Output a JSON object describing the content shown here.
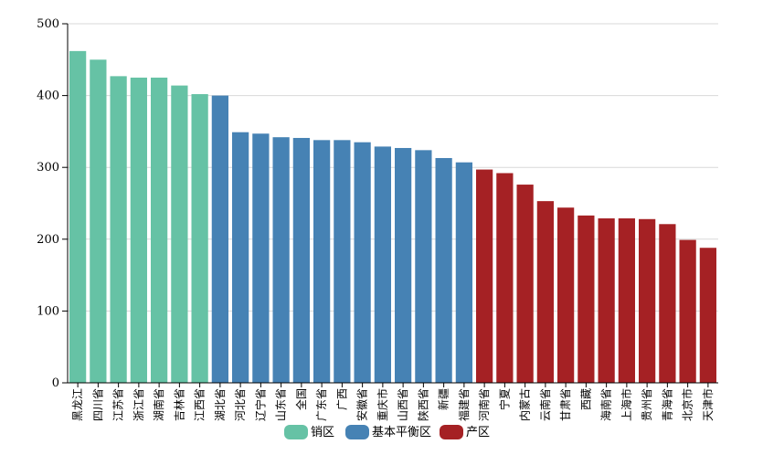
{
  "colors": {
    "series_0": "#66c2a5",
    "series_1": "#4682b4",
    "series_2": "#a52124",
    "grid": "#d9d9d9",
    "axis": "#000000"
  },
  "chart_data": {
    "type": "bar",
    "ylim": [
      0,
      500
    ],
    "y_ticks": [
      0,
      100,
      200,
      300,
      400,
      500
    ],
    "grid": true,
    "legend_position": "bottom",
    "categories": [
      "黑龙江",
      "四川省",
      "江苏省",
      "浙江省",
      "湖南省",
      "吉林省",
      "江西省",
      "湖北省",
      "河北省",
      "辽宁省",
      "山东省",
      "全国",
      "广东省",
      "广西",
      "安徽省",
      "重庆市",
      "山西省",
      "陕西省",
      "新疆",
      "福建省",
      "河南省",
      "宁夏",
      "内蒙古",
      "云南省",
      "甘肃省",
      "西藏",
      "海南省",
      "上海市",
      "贵州省",
      "青海省",
      "北京市",
      "天津市"
    ],
    "values": [
      462,
      450,
      427,
      425,
      425,
      414,
      402,
      400,
      349,
      347,
      342,
      341,
      338,
      338,
      335,
      329,
      327,
      324,
      313,
      307,
      297,
      292,
      276,
      253,
      244,
      233,
      229,
      229,
      228,
      221,
      199,
      188
    ],
    "groups": [
      0,
      0,
      0,
      0,
      0,
      0,
      0,
      1,
      1,
      1,
      1,
      1,
      1,
      1,
      1,
      1,
      1,
      1,
      1,
      1,
      2,
      2,
      2,
      2,
      2,
      2,
      2,
      2,
      2,
      2,
      2,
      2
    ],
    "series": [
      {
        "name": "销区"
      },
      {
        "name": "基本平衡区"
      },
      {
        "name": "产区"
      }
    ]
  }
}
